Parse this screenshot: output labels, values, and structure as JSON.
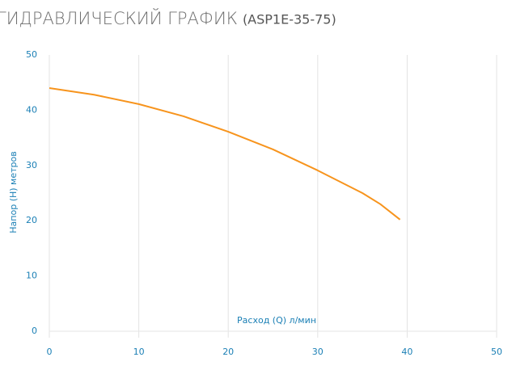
{
  "chart_data": {
    "type": "line",
    "title": "ГИДРАВЛИЧЕСКИЙ ГРАФИК",
    "subtitle": "(ASP1E-35-75)",
    "x_label": "Расход (Q) л/мин",
    "y_label": "Напор (H) метров",
    "x": [
      0,
      5,
      10,
      15,
      20,
      25,
      30,
      35,
      37,
      39.2
    ],
    "series": [
      {
        "color": "#f7941d",
        "values": [
          44,
          42.8,
          41.1,
          38.9,
          36.1,
          32.9,
          29.1,
          25,
          23,
          20.2
        ]
      }
    ],
    "xlim": [
      0,
      50
    ],
    "xticks": [
      0,
      10,
      20,
      30,
      40,
      50
    ],
    "ylim": [
      0,
      50
    ],
    "yticks": [
      0,
      10,
      20,
      30,
      40,
      50
    ],
    "grid": "x"
  }
}
